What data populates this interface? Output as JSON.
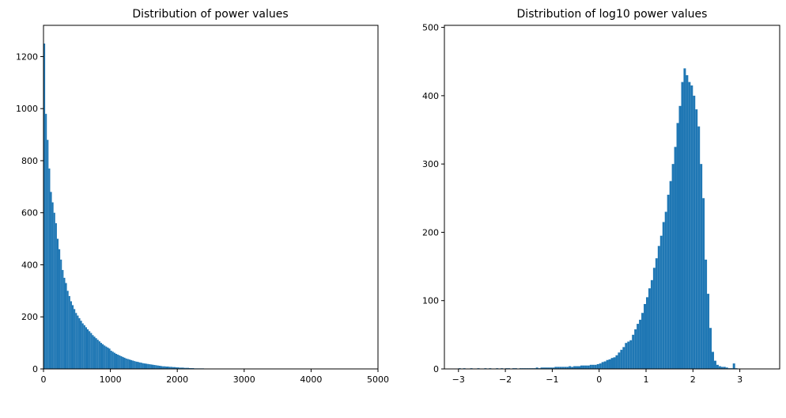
{
  "chart_data": [
    {
      "type": "bar",
      "subtype": "histogram",
      "title": "Distribution of power values",
      "xlabel": "",
      "ylabel": "",
      "xlim": [
        0,
        5000
      ],
      "ylim": [
        0,
        1320
      ],
      "xticks": [
        0,
        1000,
        2000,
        3000,
        4000,
        5000
      ],
      "xtick_labels": [
        "0",
        "1000",
        "2000",
        "3000",
        "4000",
        "5000"
      ],
      "yticks": [
        0,
        200,
        400,
        600,
        800,
        1000,
        1200
      ],
      "ytick_labels": [
        "0",
        "200",
        "400",
        "600",
        "800",
        "1000",
        "1200"
      ],
      "grid": false,
      "color": "#1f77b4",
      "bin_width": 25,
      "bins_start": 0,
      "values": [
        1250,
        980,
        880,
        770,
        680,
        640,
        600,
        560,
        500,
        460,
        420,
        380,
        350,
        330,
        300,
        280,
        260,
        245,
        230,
        215,
        205,
        195,
        185,
        175,
        168,
        160,
        152,
        145,
        138,
        130,
        124,
        118,
        112,
        106,
        100,
        95,
        90,
        86,
        82,
        78,
        70,
        66,
        62,
        58,
        55,
        52,
        49,
        46,
        43,
        40,
        38,
        36,
        34,
        32,
        30,
        28,
        27,
        25,
        24,
        22,
        21,
        20,
        19,
        18,
        17,
        16,
        15,
        14,
        13,
        12,
        11,
        10,
        10,
        9,
        9,
        8,
        8,
        7,
        7,
        6,
        6,
        5,
        5,
        5,
        4,
        4,
        4,
        3,
        3,
        3,
        2,
        2,
        2,
        2,
        2,
        2,
        1,
        1,
        1,
        1,
        1,
        1,
        1,
        1,
        1,
        1,
        1,
        1,
        1,
        1,
        1,
        1,
        1,
        1,
        1,
        1,
        1,
        1,
        1,
        1
      ]
    },
    {
      "type": "bar",
      "subtype": "histogram",
      "title": "Distribution of log10 power values",
      "xlabel": "",
      "ylabel": "",
      "xlim": [
        -3.3,
        3.85
      ],
      "ylim": [
        0,
        503
      ],
      "xticks": [
        -3,
        -2,
        -1,
        0,
        1,
        2,
        3
      ],
      "xtick_labels": [
        "−3",
        "−2",
        "−1",
        "0",
        "1",
        "2",
        "3"
      ],
      "yticks": [
        0,
        100,
        200,
        300,
        400,
        500
      ],
      "ytick_labels": [
        "0",
        "100",
        "200",
        "300",
        "400",
        "500"
      ],
      "grid": false,
      "color": "#1f77b4",
      "bin_width": 0.05,
      "bins_start": -3.0,
      "values": [
        1,
        0,
        1,
        0,
        0,
        1,
        0,
        0,
        1,
        0,
        0,
        1,
        0,
        1,
        0,
        0,
        1,
        0,
        1,
        0,
        1,
        1,
        0,
        1,
        1,
        0,
        1,
        1,
        1,
        1,
        1,
        1,
        1,
        2,
        1,
        2,
        2,
        2,
        2,
        2,
        2,
        3,
        3,
        3,
        3,
        3,
        3,
        4,
        3,
        4,
        4,
        4,
        5,
        5,
        5,
        5,
        6,
        6,
        6,
        7,
        8,
        10,
        11,
        13,
        14,
        16,
        17,
        20,
        24,
        28,
        32,
        38,
        40,
        42,
        50,
        58,
        66,
        72,
        82,
        95,
        105,
        118,
        130,
        148,
        162,
        180,
        195,
        215,
        230,
        255,
        275,
        300,
        325,
        360,
        385,
        420,
        440,
        430,
        420,
        415,
        400,
        380,
        355,
        300,
        250,
        160,
        110,
        60,
        25,
        12,
        6,
        4,
        3,
        3,
        2,
        1,
        1,
        8,
        1
      ]
    }
  ]
}
